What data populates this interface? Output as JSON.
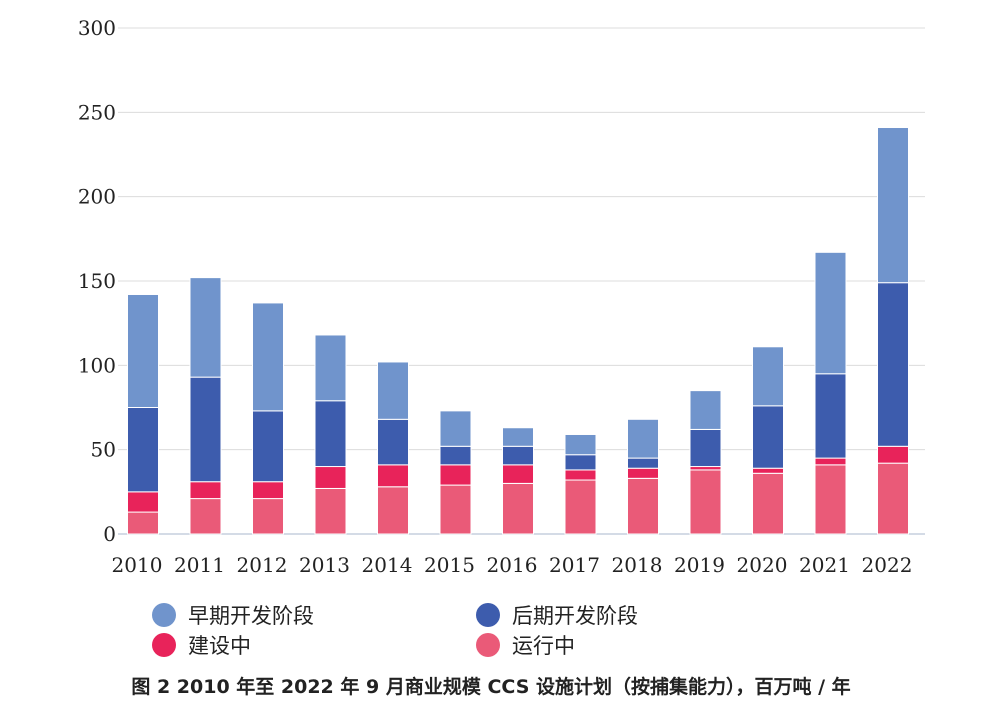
{
  "chart_data": {
    "type": "bar",
    "stacked": true,
    "title": "图 2  2010 年至 2022 年 9 月商业规模 CCS 设施计划（按捕集能力），百万吨 / 年",
    "xlabel": "",
    "ylabel": "",
    "ylim": [
      0,
      300
    ],
    "yticks": [
      "0",
      "50",
      "100",
      "150",
      "200",
      "250",
      "300"
    ],
    "ytick_values": [
      0,
      50,
      100,
      150,
      200,
      250,
      300
    ],
    "categories": [
      "2010",
      "2011",
      "2012",
      "2013",
      "2014",
      "2015",
      "2016",
      "2017",
      "2018",
      "2019",
      "2020",
      "2021",
      "2022"
    ],
    "series": [
      {
        "name": "运行中",
        "color": "#ea5a78",
        "values": [
          13,
          21,
          21,
          27,
          28,
          29,
          30,
          32,
          33,
          38,
          36,
          41,
          42
        ]
      },
      {
        "name": "建设中",
        "color": "#e8235a",
        "values": [
          12,
          10,
          10,
          13,
          13,
          12,
          11,
          6,
          6,
          2,
          3,
          4,
          10
        ]
      },
      {
        "name": "后期开发阶段",
        "color": "#3d5cad",
        "values": [
          50,
          62,
          42,
          39,
          27,
          11,
          11,
          9,
          6,
          22,
          37,
          50,
          97
        ]
      },
      {
        "name": "早期开发阶段",
        "color": "#7094cc",
        "values": [
          67,
          59,
          64,
          39,
          34,
          21,
          11,
          12,
          23,
          23,
          35,
          72,
          92
        ]
      }
    ],
    "legend_position": "bottom",
    "grid": true
  },
  "legend": {
    "early": "早期开发阶段",
    "late": "后期开发阶段",
    "construction": "建设中",
    "operating": "运行中"
  },
  "caption": "图 2  2010 年至 2022 年 9 月商业规模 CCS 设施计划（按捕集能力），百万吨 / 年"
}
